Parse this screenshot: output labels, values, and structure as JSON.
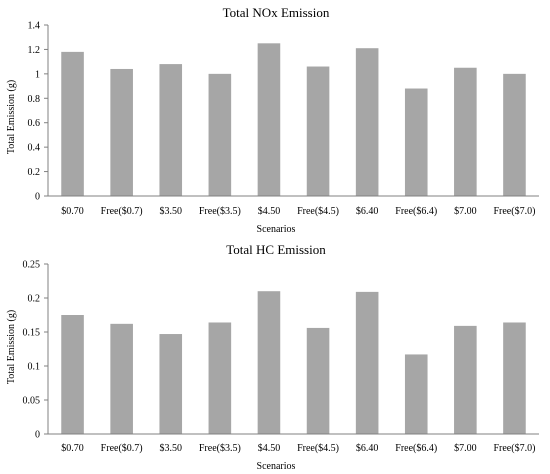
{
  "chart_data": [
    {
      "type": "bar",
      "title": "Total NOx Emission",
      "xlabel": "Scenarios",
      "ylabel": "Total Emission (g)",
      "categories": [
        "$0.70",
        "Free($0.7)",
        "$3.50",
        "Free($3.5)",
        "$4.50",
        "Free($4.5)",
        "$6.40",
        "Free($6.4)",
        "$7.00",
        "Free($7.0)"
      ],
      "values": [
        1.18,
        1.04,
        1.08,
        1.0,
        1.25,
        1.06,
        1.21,
        0.88,
        1.05,
        1.0
      ],
      "ylim": [
        0,
        1.4
      ],
      "yticks": [
        "0",
        "0.2",
        "0.4",
        "0.6",
        "0.8",
        "1",
        "1.2",
        "1.4"
      ],
      "ytick_values": [
        0,
        0.2,
        0.4,
        0.6,
        0.8,
        1.0,
        1.2,
        1.4
      ],
      "grid": false,
      "bar_color": "#a6a6a6"
    },
    {
      "type": "bar",
      "title": "Total HC Emission",
      "xlabel": "Scenarios",
      "ylabel": "Total Emission (g)",
      "categories": [
        "$0.70",
        "Free($0.7)",
        "$3.50",
        "Free($3.5)",
        "$4.50",
        "Free($4.5)",
        "$6.40",
        "Free($6.4)",
        "$7.00",
        "Free($7.0)"
      ],
      "values": [
        0.175,
        0.162,
        0.147,
        0.164,
        0.21,
        0.156,
        0.209,
        0.117,
        0.159,
        0.164
      ],
      "ylim": [
        0,
        0.25
      ],
      "yticks": [
        "0",
        "0.05",
        "0.1",
        "0.15",
        "0.2",
        "0.25"
      ],
      "ytick_values": [
        0,
        0.05,
        0.1,
        0.15,
        0.2,
        0.25
      ],
      "grid": false,
      "bar_color": "#a6a6a6"
    }
  ]
}
